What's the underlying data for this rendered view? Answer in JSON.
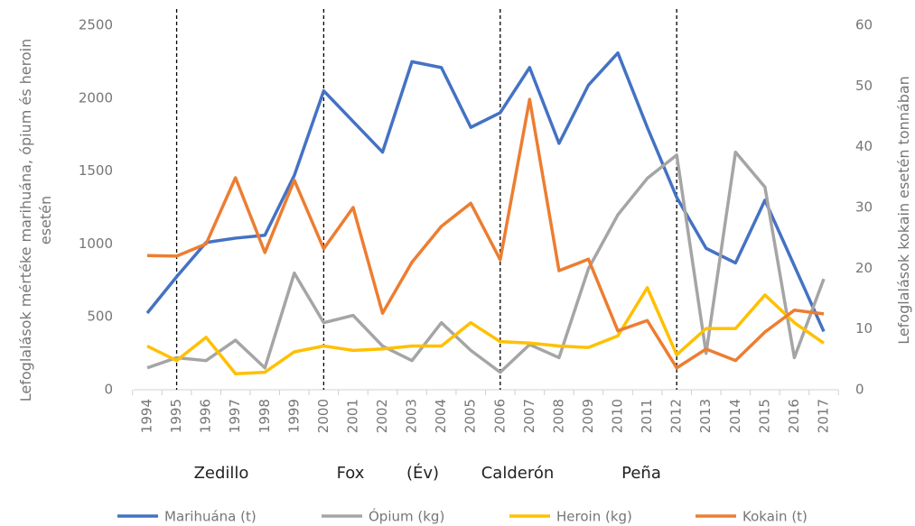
{
  "chart_data": {
    "type": "line",
    "categories": [
      "1994",
      "1995",
      "1996",
      "1997",
      "1998",
      "1999",
      "2000",
      "2001",
      "2002",
      "2003",
      "2004",
      "2005",
      "2006",
      "2007",
      "2008",
      "2009",
      "2010",
      "2011",
      "2012",
      "2013",
      "2014",
      "2015",
      "2016",
      "2017"
    ],
    "series": [
      {
        "name": "Marihuána (t)",
        "color": "#4472c4",
        "values": [
          526,
          775,
          1010,
          1040,
          1060,
          1470,
          2050,
          1840,
          1630,
          2250,
          2210,
          1800,
          1900,
          2210,
          1690,
          2090,
          2310,
          1800,
          1320,
          970,
          870,
          1300,
          850,
          400
        ]
      },
      {
        "name": "Ópium (kg)",
        "color": "#a5a5a5",
        "values": [
          150,
          220,
          200,
          340,
          150,
          800,
          460,
          510,
          300,
          200,
          460,
          270,
          120,
          310,
          220,
          830,
          1200,
          1450,
          1610,
          250,
          1630,
          1390,
          220,
          760
        ]
      },
      {
        "name": "Heroin (kg)",
        "color": "#ffc000",
        "values": [
          300,
          200,
          360,
          110,
          120,
          260,
          300,
          270,
          280,
          300,
          300,
          460,
          330,
          320,
          300,
          290,
          370,
          700,
          240,
          420,
          420,
          650,
          460,
          320
        ]
      },
      {
        "name": "Kokain (t)",
        "color": "#ed7d31",
        "axis": "y2",
        "values": [
          22.1,
          22,
          24,
          34.9,
          22.6,
          34.5,
          23.2,
          30,
          12.6,
          21,
          26.9,
          30.7,
          21.4,
          47.8,
          19.6,
          21.5,
          9.7,
          11.4,
          3.6,
          6.7,
          4.8,
          9.5,
          13.1,
          12.5
        ]
      }
    ],
    "ylabel": "Lefoglalások mértéke marihuána, ópium és heroin esetén",
    "y2label": "Lefoglalások kokain esetén tonnában",
    "xlabel": "(Év)",
    "annotations": [
      "Zedillo",
      "Fox",
      "Calderón",
      "Peña"
    ],
    "dividers": [
      "1995",
      "2000",
      "2006",
      "2012"
    ],
    "ylim": [
      0,
      2500
    ],
    "yticks": [
      0,
      500,
      1000,
      1500,
      2000,
      2500
    ],
    "y2lim": [
      0,
      60
    ],
    "y2ticks": [
      0,
      10,
      20,
      30,
      40,
      50,
      60
    ],
    "legend": "bottom"
  }
}
